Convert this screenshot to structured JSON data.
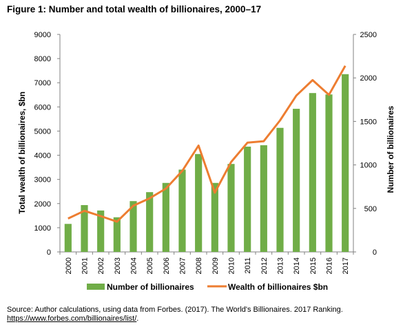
{
  "chart_data": {
    "type": "bar+line",
    "title": "Figure 1: Number and total wealth of billionaires, 2000–17",
    "categories": [
      "2000",
      "2001",
      "2002",
      "2003",
      "2004",
      "2005",
      "2006",
      "2007",
      "2008",
      "2009",
      "2010",
      "2011",
      "2012",
      "2013",
      "2014",
      "2015",
      "2016",
      "2017"
    ],
    "series": [
      {
        "name": "Number of billionaires",
        "type": "bar",
        "axis": "right",
        "color": "#70AD47",
        "values": [
          322,
          538,
          476,
          398,
          584,
          687,
          793,
          946,
          1125,
          793,
          1011,
          1210,
          1226,
          1426,
          1645,
          1826,
          1810,
          2043
        ]
      },
      {
        "name": "Wealth of billionaires $bn",
        "type": "line",
        "axis": "left",
        "color": "#ED7D31",
        "values": [
          1380,
          1700,
          1480,
          1250,
          1910,
          2220,
          2620,
          3350,
          4400,
          2450,
          3720,
          4520,
          4580,
          5440,
          6470,
          7110,
          6500,
          7700
        ]
      }
    ],
    "ylabel_left": "Total wealth of billionaires, $bn",
    "ylabel_right": "Number of billionaires",
    "ylim_left": [
      0,
      9000
    ],
    "ylim_right": [
      0,
      2500
    ],
    "yticks_left": [
      "0",
      "1000",
      "2000",
      "3000",
      "4000",
      "5000",
      "6000",
      "7000",
      "8000",
      "9000"
    ],
    "yticks_right": [
      "0",
      "500",
      "1000",
      "1500",
      "2000",
      "2500"
    ],
    "grid": false,
    "legend_position": "bottom"
  },
  "source": {
    "text": "Source: Author calculations, using data from Forbes. (2017). The World's Billionaires. 2017 Ranking.",
    "link": "https://www.forbes.com/billionaires/list/",
    "link_suffix": "."
  }
}
